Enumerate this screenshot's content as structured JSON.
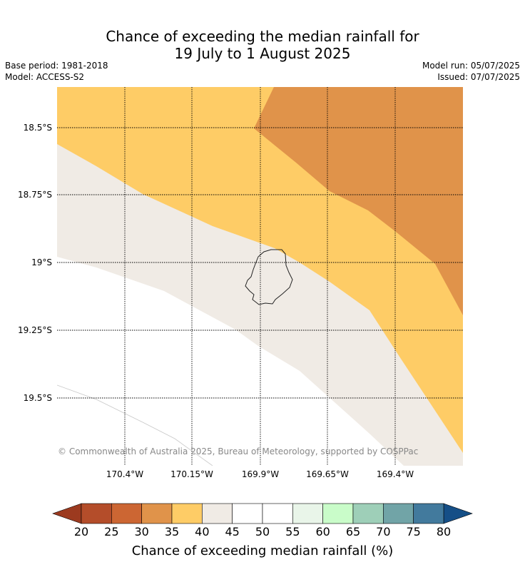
{
  "title_line1": "Chance of exceeding the median rainfall for",
  "title_line2": "19 July to 1 August 2025",
  "base_period": "Base period: 1981-2018",
  "model": "Model: ACCESS-S2",
  "model_run": "Model run: 05/07/2025",
  "issued": "Issued: 07/07/2025",
  "copyright": "© Commonwealth of Australia 2025, Bureau of Meteorology, supported by COSPPac",
  "y_ticks": [
    "18.5°S",
    "18.75°S",
    "19°S",
    "19.25°S",
    "19.5°S"
  ],
  "x_ticks": [
    "170.4°W",
    "170.15°W",
    "169.9°W",
    "169.65°W",
    "169.4°W"
  ],
  "colorbar": {
    "title": "Chance of exceeding median rainfall (%)",
    "labels": [
      "20",
      "25",
      "30",
      "35",
      "40",
      "45",
      "50",
      "55",
      "60",
      "65",
      "70",
      "75",
      "80"
    ],
    "colors": [
      "#b44d2a",
      "#cc6633",
      "#e0934a",
      "#fecc66",
      "#f0ebe5",
      "#ffffff",
      "#ffffff",
      "#e9f5e9",
      "#c9fcc9",
      "#9ecfb8",
      "#71a4a7",
      "#427a9d"
    ],
    "under_color": "#9c3a1f",
    "over_color": "#154f87"
  },
  "map_colors": {
    "band_30_35": "#e0934a",
    "band_35_40": "#fecc66",
    "band_40_45": "#f0ebe5",
    "band_45_55": "#ffffff"
  }
}
